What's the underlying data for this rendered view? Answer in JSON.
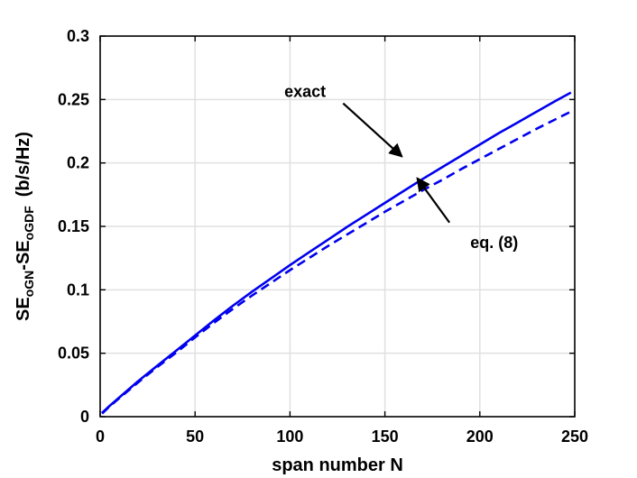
{
  "chart_data": {
    "type": "line",
    "title": "",
    "xlabel": "span number N",
    "ylabel": {
      "prefix": "SE",
      "sub1": "oGN",
      "mid": "-SE",
      "sub2": "oGDF",
      "suffix": "(b/s/Hz)"
    },
    "xlim": [
      0,
      250
    ],
    "ylim": [
      0,
      0.3
    ],
    "xticks": [
      0,
      50,
      100,
      150,
      200,
      250
    ],
    "xtick_labels": [
      "0",
      "50",
      "100",
      "150",
      "200",
      "250"
    ],
    "yticks": [
      0,
      0.05,
      0.1,
      0.15,
      0.2,
      0.25,
      0.3
    ],
    "ytick_labels": [
      "0",
      "0.05",
      "0.1",
      "0.15",
      "0.2",
      "0.25",
      "0.3"
    ],
    "grid": true,
    "series": [
      {
        "style": "solid",
        "color": "#0000ee",
        "x": [
          1,
          5,
          10,
          20,
          30,
          40,
          50,
          60,
          70,
          80,
          90,
          100,
          110,
          120,
          130,
          140,
          150,
          160,
          170,
          180,
          190,
          200,
          210,
          220,
          230,
          240,
          248
        ],
        "y": [
          0.003,
          0.0085,
          0.015,
          0.028,
          0.04,
          0.052,
          0.064,
          0.076,
          0.0875,
          0.0985,
          0.109,
          0.1195,
          0.1295,
          0.1395,
          0.1495,
          0.159,
          0.1685,
          0.178,
          0.1875,
          0.1965,
          0.2055,
          0.2145,
          0.2235,
          0.232,
          0.2405,
          0.249,
          0.2555
        ]
      },
      {
        "style": "dashed",
        "color": "#0000ee",
        "x": [
          1,
          5,
          10,
          20,
          30,
          40,
          50,
          60,
          70,
          80,
          90,
          100,
          110,
          120,
          130,
          140,
          150,
          160,
          170,
          180,
          190,
          200,
          210,
          220,
          230,
          240,
          248
        ],
        "y": [
          0.0025,
          0.008,
          0.0145,
          0.027,
          0.039,
          0.0505,
          0.0625,
          0.074,
          0.085,
          0.0955,
          0.1055,
          0.1155,
          0.125,
          0.1345,
          0.1435,
          0.1525,
          0.1615,
          0.17,
          0.1785,
          0.1865,
          0.195,
          0.203,
          0.211,
          0.219,
          0.227,
          0.2345,
          0.2405
        ]
      }
    ],
    "annotations": [
      {
        "text": "exact",
        "text_at": [
          97,
          0.252
        ],
        "arrow_from": [
          128,
          0.247
        ],
        "arrow_to": [
          159,
          0.205
        ]
      },
      {
        "text": "eq. (8)",
        "text_at": [
          195,
          0.133
        ],
        "arrow_from": [
          184,
          0.153
        ],
        "arrow_to": [
          167,
          0.188
        ]
      }
    ]
  }
}
